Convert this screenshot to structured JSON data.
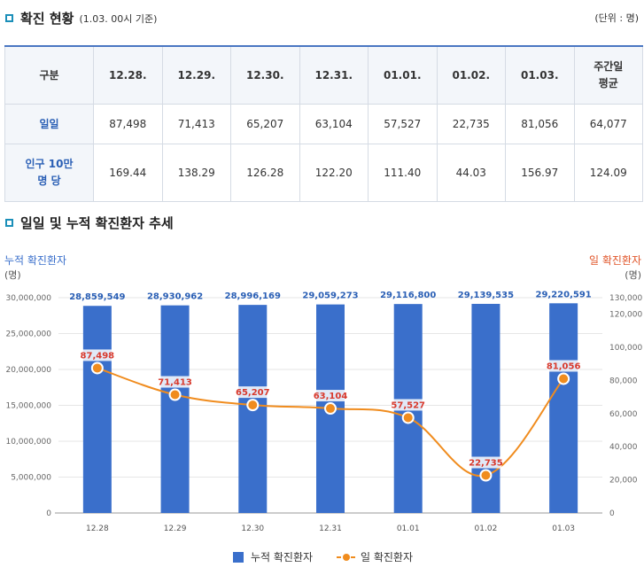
{
  "table_section": {
    "title": "확진 현황",
    "subtitle": "(1.03. 00시 기준)",
    "unit": "(단위 : 명)",
    "headers": [
      "구분",
      "12.28.",
      "12.29.",
      "12.30.",
      "12.31.",
      "01.01.",
      "01.02.",
      "01.03.",
      "주간일\n평균"
    ],
    "rows": [
      {
        "label": "일일",
        "values": [
          "87,498",
          "71,413",
          "65,207",
          "63,104",
          "57,527",
          "22,735",
          "81,056",
          "64,077"
        ]
      },
      {
        "label": "인구 10만\n명 당",
        "values": [
          "169.44",
          "138.29",
          "126.28",
          "122.20",
          "111.40",
          "44.03",
          "156.97",
          "124.09"
        ]
      }
    ]
  },
  "chart_section": {
    "title": "일일 및 누적 확진환자 추세"
  },
  "chart_data": {
    "type": "bar",
    "categories": [
      "12.28",
      "12.29",
      "12.30",
      "12.31",
      "01.01",
      "01.02",
      "01.03"
    ],
    "series": [
      {
        "name": "누적 확진환자",
        "type": "bar",
        "axis": "left",
        "color": "#3a6fcb",
        "values": [
          28859549,
          28930962,
          28996169,
          29059273,
          29116800,
          29139535,
          29220591
        ],
        "labels": [
          "28,859,549",
          "28,930,962",
          "28,996,169",
          "29,059,273",
          "29,116,800",
          "29,139,535",
          "29,220,591"
        ]
      },
      {
        "name": "일 확진환자",
        "type": "line",
        "axis": "right",
        "color": "#f08c1e",
        "values": [
          87498,
          71413,
          65207,
          63104,
          57527,
          22735,
          81056
        ],
        "labels": [
          "87,498",
          "71,413",
          "65,207",
          "63,104",
          "57,527",
          "22,735",
          "81,056"
        ]
      }
    ],
    "ylabel_left": "누적 확진환자",
    "ylabel_left_unit": "(명)",
    "ylabel_right": "일 확진환자",
    "ylabel_right_unit": "(명)",
    "ylim_left": [
      0,
      30000000
    ],
    "yticks_left": [
      "0",
      "5,000,000",
      "10,000,000",
      "15,000,000",
      "20,000,000",
      "25,000,000",
      "30,000,000"
    ],
    "ylim_right": [
      0,
      130000
    ],
    "yticks_right": [
      "0",
      "20,000",
      "40,000",
      "60,000",
      "80,000",
      "100,000",
      "120,000",
      "130,000"
    ],
    "legend_position": "bottom-center",
    "grid": true,
    "colors": {
      "left_axis_title": "#3a6fcb",
      "right_axis_title": "#e0552a",
      "line_label": "#d8392c",
      "bar_label": "#2a5fb5"
    }
  }
}
